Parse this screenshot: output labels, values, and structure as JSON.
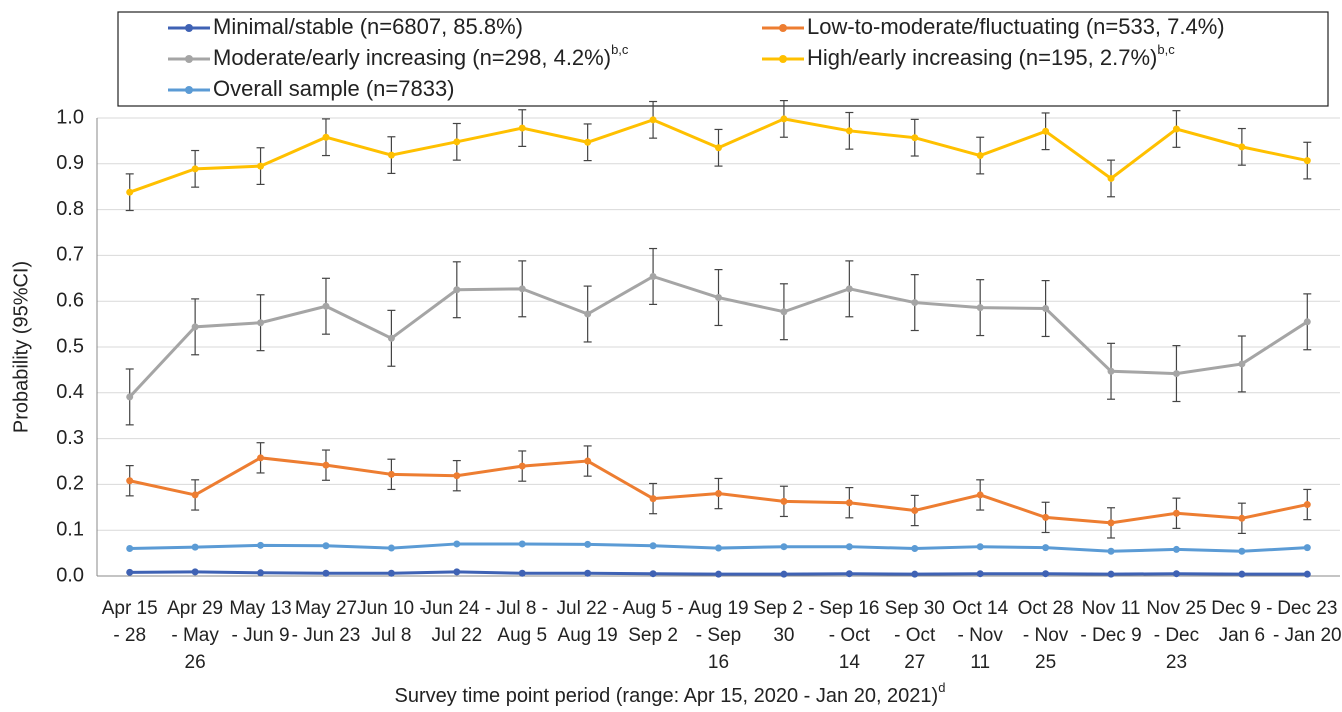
{
  "chart_data": {
    "type": "line",
    "y_label": "Probability (95%CI)",
    "x_label": "Survey time point period (range: Apr 15, 2020 - Jan 20, 2021)",
    "x_label_note": "d",
    "categories": [
      "Apr 15\n- 28",
      "Apr 29\n- May\n26",
      "May 13\n- Jun 9",
      "May 27\n- Jun 23",
      "Jun 10 -\nJul 8",
      "Jun 24 -\nJul 22",
      "Jul 8 -\nAug 5",
      "Jul 22 -\nAug 19",
      "Aug 5 -\nSep 2",
      "Aug 19\n- Sep\n16",
      "Sep 2 -\n30",
      "Sep 16\n- Oct\n14",
      "Sep 30\n- Oct\n27",
      "Oct 14\n- Nov\n11",
      "Oct 28\n- Nov\n25",
      "Nov 11\n- Dec 9",
      "Nov 25\n- Dec\n23",
      "Dec 9 -\nJan 6",
      "Dec 23\n- Jan 20"
    ],
    "ylim": [
      0,
      1
    ],
    "yticks": [
      {
        "value": 0,
        "label": "0.0"
      },
      {
        "value": 0.1,
        "label": "0.1"
      },
      {
        "value": 0.2,
        "label": "0.2"
      },
      {
        "value": 0.3,
        "label": "0.3"
      },
      {
        "value": 0.4,
        "label": "0.4"
      },
      {
        "value": 0.5,
        "label": "0.5"
      },
      {
        "value": 0.6,
        "label": "0.6"
      },
      {
        "value": 0.7,
        "label": "0.7"
      },
      {
        "value": 0.8,
        "label": "0.8"
      },
      {
        "value": 0.9,
        "label": "0.9"
      },
      {
        "value": 1,
        "label": "1.0"
      }
    ],
    "grid": true,
    "series": [
      {
        "name": "Minimal/stable (n=6807, 85.8%)",
        "color": "#3f62b4",
        "values": [
          0.008,
          0.009,
          0.007,
          0.006,
          0.006,
          0.009,
          0.006,
          0.006,
          0.005,
          0.004,
          0.004,
          0.005,
          0.004,
          0.005,
          0.005,
          0.004,
          0.005,
          0.004,
          0.004
        ]
      },
      {
        "name": "Low-to-moderate/fluctuating (n=533, 7.4%)",
        "color": "#ed7d31",
        "values": [
          0.208,
          0.177,
          0.258,
          0.242,
          0.222,
          0.219,
          0.24,
          0.251,
          0.169,
          0.18,
          0.163,
          0.16,
          0.143,
          0.177,
          0.128,
          0.116,
          0.137,
          0.126,
          0.156
        ],
        "errors": [
          0.033,
          0.033,
          0.033,
          0.033,
          0.033,
          0.033,
          0.033,
          0.033,
          0.033,
          0.033,
          0.033,
          0.033,
          0.033,
          0.033,
          0.033,
          0.033,
          0.033,
          0.033,
          0.033
        ]
      },
      {
        "name": "Moderate/early increasing (n=298, 4.2%)",
        "name_note": "b,c",
        "color": "#a5a5a5",
        "values": [
          0.391,
          0.544,
          0.553,
          0.589,
          0.519,
          0.625,
          0.627,
          0.572,
          0.654,
          0.608,
          0.577,
          0.627,
          0.597,
          0.586,
          0.584,
          0.447,
          0.442,
          0.463,
          0.555
        ],
        "errors": [
          0.061,
          0.061,
          0.061,
          0.061,
          0.061,
          0.061,
          0.061,
          0.061,
          0.061,
          0.061,
          0.061,
          0.061,
          0.061,
          0.061,
          0.061,
          0.061,
          0.061,
          0.061,
          0.061
        ]
      },
      {
        "name": "High/early increasing (n=195, 2.7%)",
        "name_note": "b,c",
        "color": "#ffc000",
        "values": [
          0.838,
          0.889,
          0.895,
          0.958,
          0.919,
          0.948,
          0.978,
          0.947,
          0.996,
          0.935,
          0.998,
          0.972,
          0.957,
          0.918,
          0.971,
          0.868,
          0.976,
          0.937,
          0.907
        ],
        "errors": [
          0.04,
          0.04,
          0.04,
          0.04,
          0.04,
          0.04,
          0.04,
          0.04,
          0.04,
          0.04,
          0.04,
          0.04,
          0.04,
          0.04,
          0.04,
          0.04,
          0.04,
          0.04,
          0.04
        ]
      },
      {
        "name": "Overall sample (n=7833)",
        "color": "#5b9bd5",
        "values": [
          0.06,
          0.063,
          0.067,
          0.066,
          0.061,
          0.07,
          0.07,
          0.069,
          0.066,
          0.061,
          0.064,
          0.064,
          0.06,
          0.064,
          0.062,
          0.054,
          0.058,
          0.054,
          0.062
        ]
      }
    ]
  }
}
